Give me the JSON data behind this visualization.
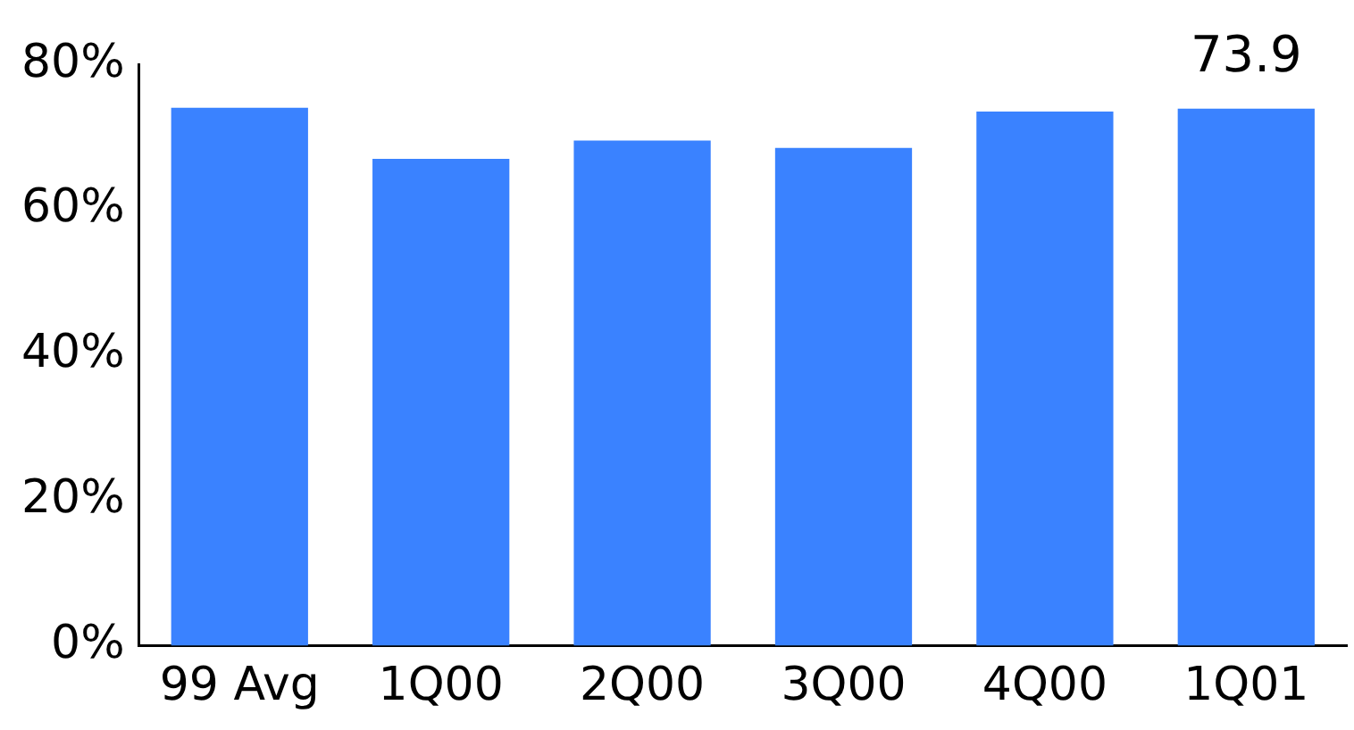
{
  "chart_data": {
    "type": "bar",
    "categories": [
      "99 Avg",
      "1Q00",
      "2Q00",
      "3Q00",
      "4Q00",
      "1Q01"
    ],
    "values": [
      74.0,
      67.0,
      69.5,
      68.5,
      73.5,
      73.9
    ],
    "value_labels": [
      null,
      null,
      null,
      null,
      null,
      "73.9"
    ],
    "color": "#3a82ff",
    "ylim": [
      0,
      80
    ],
    "yticks": [
      {
        "value": 0,
        "label": "0%"
      },
      {
        "value": 20,
        "label": "20%"
      },
      {
        "value": 40,
        "label": "40%"
      },
      {
        "value": 60,
        "label": "60%"
      },
      {
        "value": 80,
        "label": "80%"
      }
    ],
    "grid": false,
    "legend": false
  }
}
